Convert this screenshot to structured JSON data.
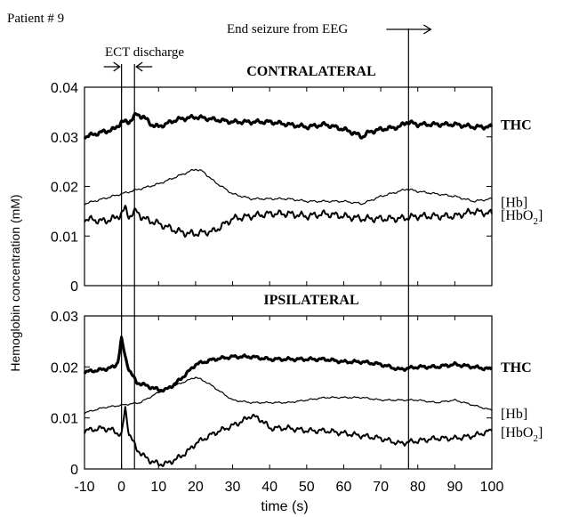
{
  "header": {
    "patient_label": "Patient # 9",
    "ect_label": "ECT discharge",
    "end_label": "End seizure from EEG"
  },
  "ylabel": "Hemoglobin concentration (mM)",
  "xlabel": "time (s)",
  "chart_data": [
    {
      "type": "line",
      "title": "CONTRALATERAL",
      "xlim": [
        -10,
        100
      ],
      "ylim": [
        0,
        0.04
      ],
      "xticks": [
        "-10",
        "0",
        "10",
        "20",
        "30",
        "40",
        "50",
        "60",
        "70",
        "80",
        "90",
        "100"
      ],
      "yticks": [
        "0",
        "0.01",
        "0.02",
        "0.03",
        "0.04"
      ],
      "markers_x": [
        0,
        3.5,
        77.5
      ],
      "series": [
        {
          "name": "THC",
          "x": [
            -10,
            -5,
            -2,
            0,
            2,
            4,
            6,
            8,
            10,
            15,
            20,
            25,
            30,
            35,
            40,
            45,
            50,
            55,
            60,
            62,
            65,
            67,
            70,
            75,
            77,
            80,
            85,
            90,
            95,
            100
          ],
          "values": [
            0.03,
            0.031,
            0.0315,
            0.033,
            0.033,
            0.0345,
            0.034,
            0.0325,
            0.032,
            0.0335,
            0.034,
            0.0335,
            0.033,
            0.033,
            0.033,
            0.0325,
            0.032,
            0.0325,
            0.0315,
            0.031,
            0.03,
            0.031,
            0.0315,
            0.032,
            0.033,
            0.0325,
            0.0325,
            0.0325,
            0.032,
            0.032
          ]
        },
        {
          "name": "[Hb]",
          "x": [
            -10,
            -5,
            0,
            5,
            10,
            15,
            20,
            22,
            25,
            30,
            35,
            40,
            45,
            50,
            55,
            60,
            65,
            70,
            75,
            77,
            80,
            85,
            90,
            95,
            100
          ],
          "values": [
            0.0165,
            0.0175,
            0.0185,
            0.0195,
            0.0205,
            0.022,
            0.0235,
            0.023,
            0.021,
            0.0185,
            0.0175,
            0.0175,
            0.0175,
            0.017,
            0.017,
            0.017,
            0.0165,
            0.018,
            0.019,
            0.0195,
            0.019,
            0.0185,
            0.018,
            0.017,
            0.0175
          ]
        },
        {
          "name": "[HbO2]",
          "x": [
            -10,
            -5,
            -2,
            0,
            1,
            2,
            4,
            6,
            10,
            15,
            18,
            20,
            25,
            30,
            35,
            40,
            45,
            50,
            55,
            60,
            65,
            70,
            75,
            80,
            85,
            90,
            95,
            100
          ],
          "values": [
            0.0135,
            0.013,
            0.0135,
            0.0145,
            0.0155,
            0.014,
            0.015,
            0.0135,
            0.0125,
            0.011,
            0.0105,
            0.0105,
            0.011,
            0.0135,
            0.014,
            0.0145,
            0.0145,
            0.014,
            0.0145,
            0.014,
            0.0135,
            0.0135,
            0.0135,
            0.014,
            0.014,
            0.014,
            0.015,
            0.0145
          ]
        }
      ]
    },
    {
      "type": "line",
      "title": "IPSILATERAL",
      "xlim": [
        -10,
        100
      ],
      "ylim": [
        0,
        0.03
      ],
      "xticks": [
        "-10",
        "0",
        "10",
        "20",
        "30",
        "40",
        "50",
        "60",
        "70",
        "80",
        "90",
        "100"
      ],
      "yticks": [
        "0",
        "0.01",
        "0.02",
        "0.03"
      ],
      "markers_x": [
        0,
        3.5,
        77.5
      ],
      "series": [
        {
          "name": "THC",
          "x": [
            -10,
            -5,
            -2,
            -1,
            0,
            1,
            2,
            4,
            6,
            8,
            10,
            12,
            15,
            18,
            20,
            25,
            30,
            35,
            40,
            45,
            50,
            55,
            60,
            65,
            70,
            75,
            80,
            85,
            90,
            95,
            100
          ],
          "values": [
            0.019,
            0.0195,
            0.02,
            0.021,
            0.0255,
            0.022,
            0.0195,
            0.017,
            0.0165,
            0.016,
            0.0155,
            0.0155,
            0.017,
            0.019,
            0.0205,
            0.0215,
            0.022,
            0.022,
            0.0215,
            0.0215,
            0.0215,
            0.0215,
            0.021,
            0.021,
            0.0205,
            0.0195,
            0.02,
            0.02,
            0.0205,
            0.02,
            0.0195
          ]
        },
        {
          "name": "[Hb]",
          "x": [
            -10,
            -5,
            0,
            5,
            10,
            15,
            20,
            23,
            25,
            30,
            35,
            40,
            45,
            50,
            55,
            60,
            65,
            70,
            75,
            80,
            85,
            90,
            95,
            100
          ],
          "values": [
            0.011,
            0.012,
            0.0125,
            0.013,
            0.015,
            0.0165,
            0.018,
            0.017,
            0.016,
            0.0135,
            0.013,
            0.013,
            0.013,
            0.0135,
            0.014,
            0.014,
            0.014,
            0.0135,
            0.0135,
            0.0135,
            0.013,
            0.0135,
            0.0125,
            0.0115
          ]
        },
        {
          "name": "[HbO2]",
          "x": [
            -10,
            -5,
            -2,
            0,
            1,
            2,
            4,
            6,
            8,
            10,
            12,
            15,
            18,
            20,
            25,
            30,
            33,
            35,
            38,
            40,
            45,
            50,
            55,
            60,
            65,
            70,
            75,
            80,
            85,
            90,
            95,
            100
          ],
          "values": [
            0.0075,
            0.008,
            0.0075,
            0.0065,
            0.012,
            0.007,
            0.004,
            0.0025,
            0.0015,
            0.001,
            0.001,
            0.002,
            0.0035,
            0.005,
            0.007,
            0.0085,
            0.0095,
            0.0105,
            0.0095,
            0.008,
            0.008,
            0.0075,
            0.0075,
            0.007,
            0.0065,
            0.006,
            0.005,
            0.0055,
            0.006,
            0.006,
            0.0065,
            0.0075
          ]
        }
      ]
    }
  ]
}
